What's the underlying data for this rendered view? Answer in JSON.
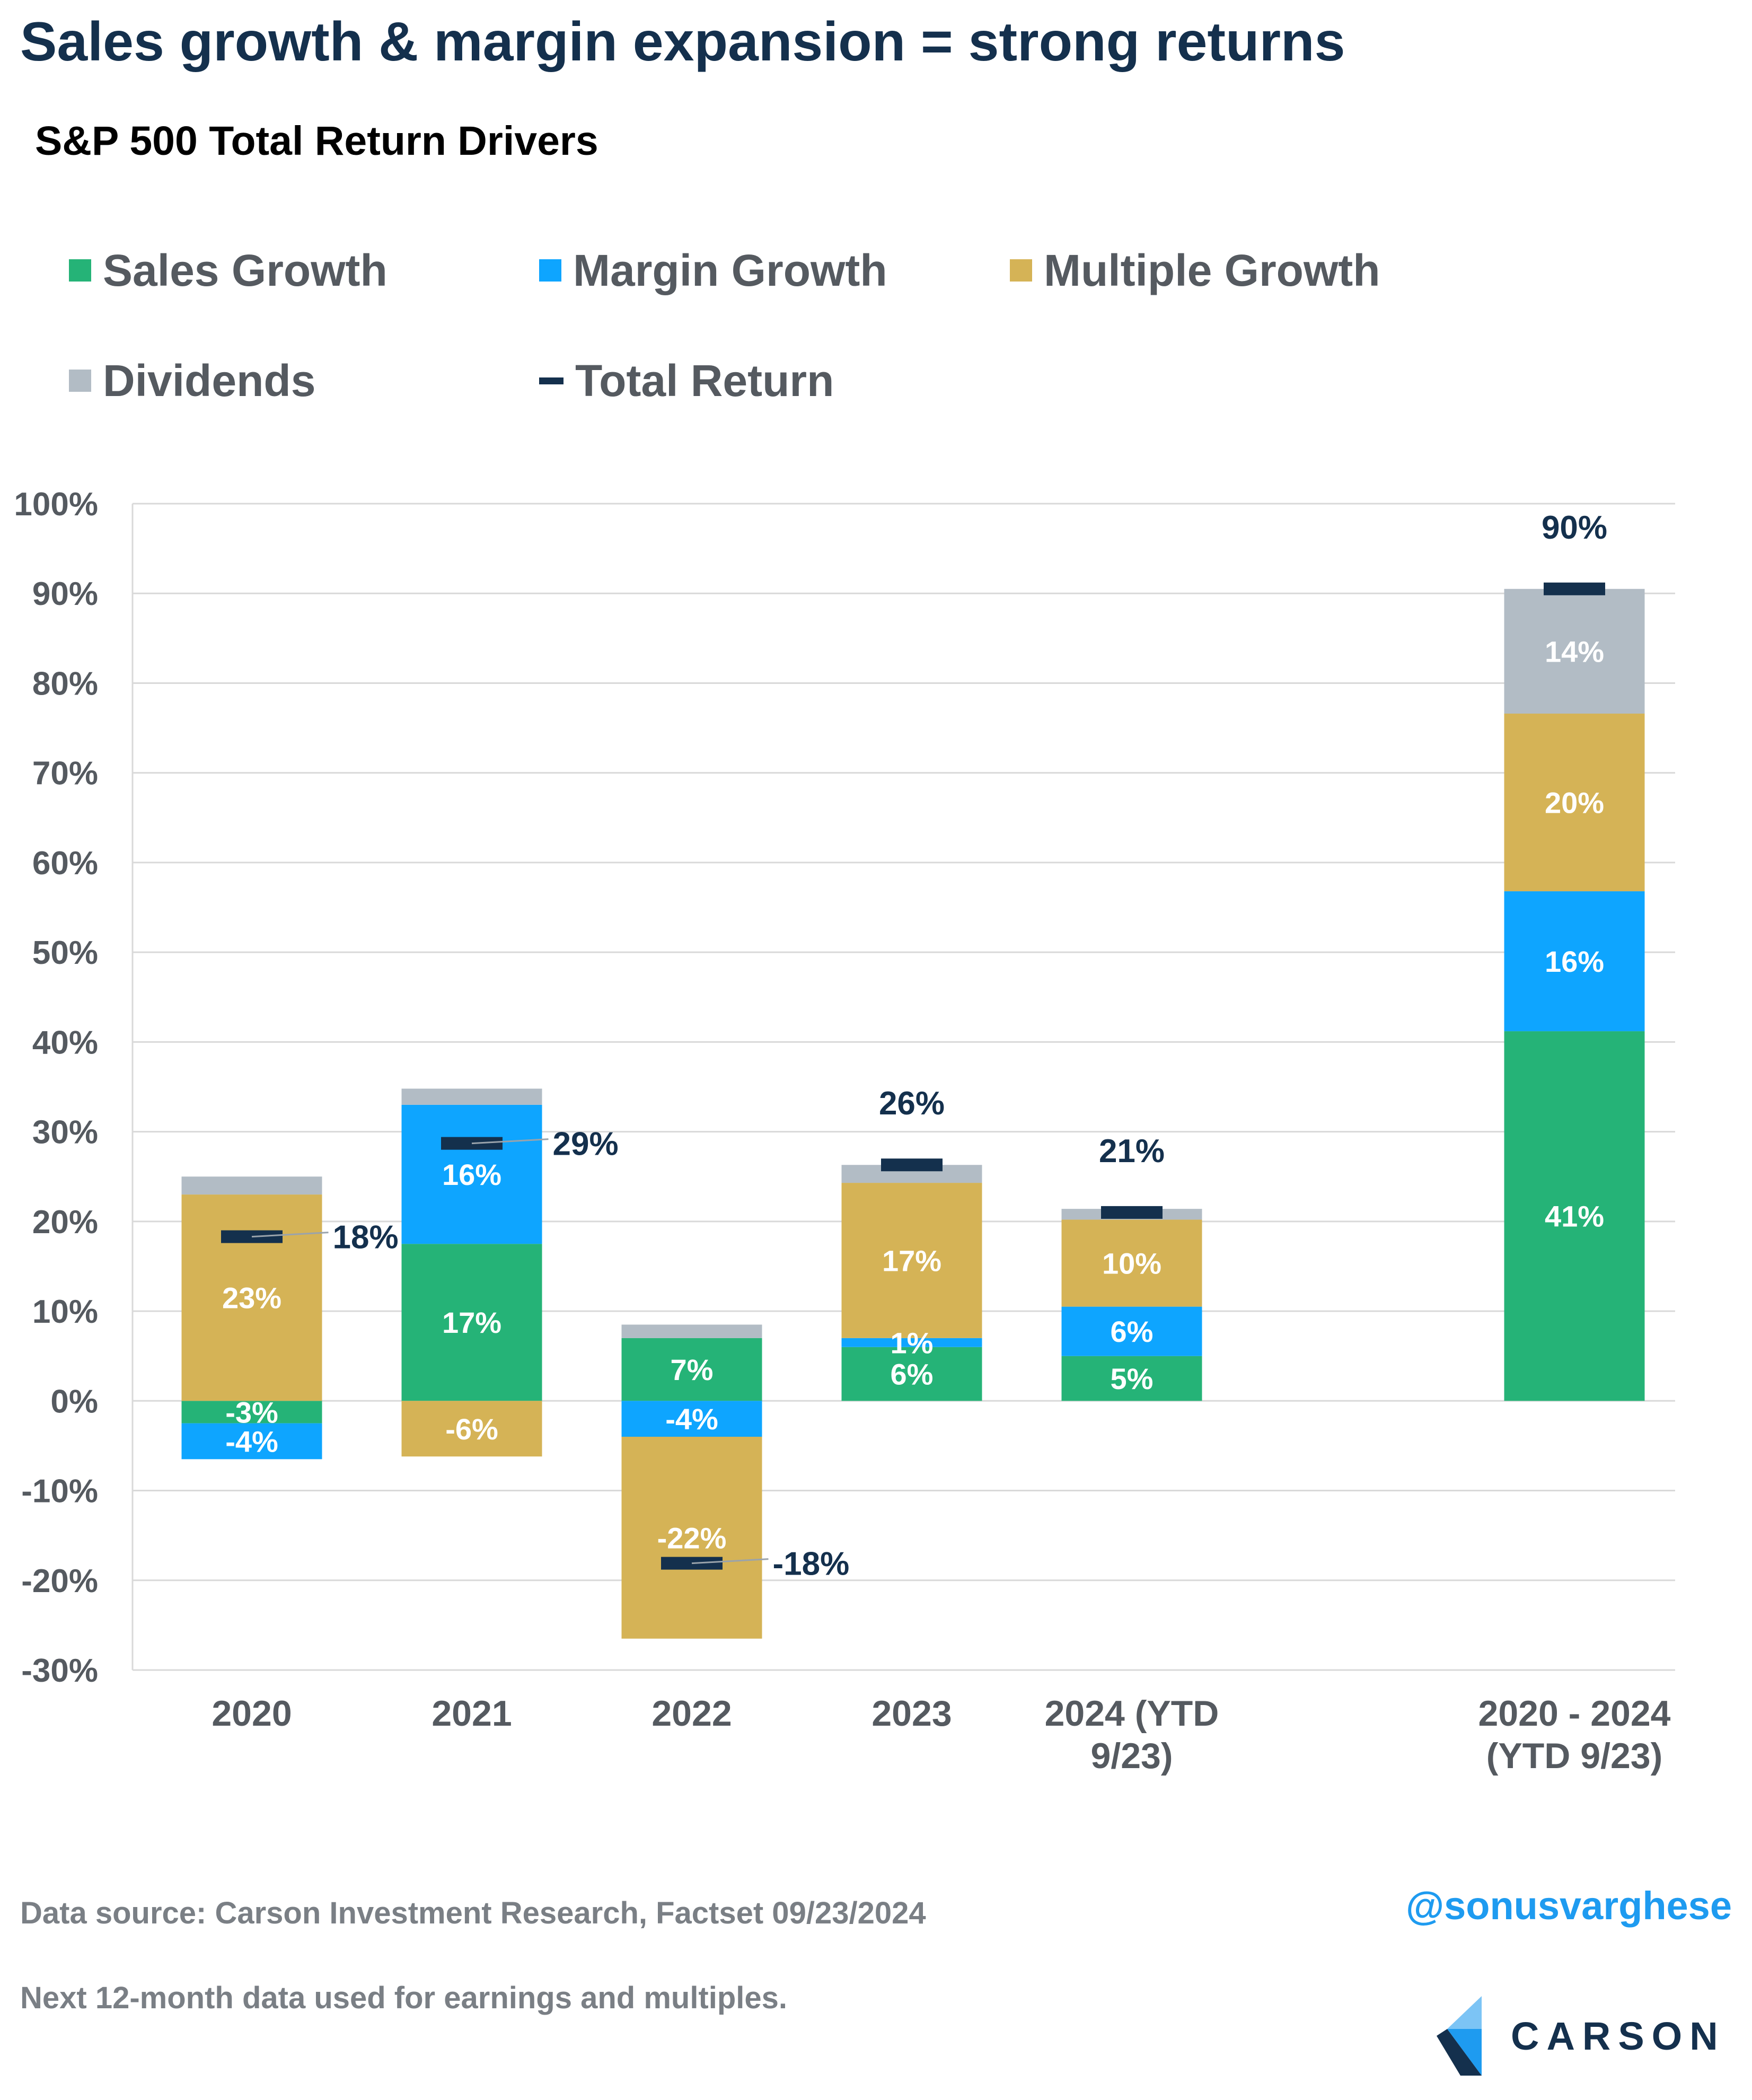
{
  "title": "Sales growth & margin expansion = strong returns",
  "subtitle": "S&P 500 Total Return Drivers",
  "colors": {
    "sales": "#25b377",
    "margin": "#0ea5ff",
    "multiple": "#d5b356",
    "dividends": "#b2bcc5",
    "total": "#14304d",
    "grid": "#d9d9d9",
    "axis_text": "#555a60"
  },
  "legend": [
    {
      "key": "sales",
      "label": "Sales Growth"
    },
    {
      "key": "margin",
      "label": "Margin Growth"
    },
    {
      "key": "multiple",
      "label": "Multiple Growth"
    },
    {
      "key": "dividends",
      "label": "Dividends"
    },
    {
      "key": "total",
      "label": "Total Return"
    }
  ],
  "chart_data": {
    "type": "bar",
    "stacked": true,
    "categories": [
      "2020",
      "2021",
      "2022",
      "2023",
      "2024 (YTD 9/23)",
      "2020 - 2024 (YTD 9/23)"
    ],
    "category_lines": [
      [
        "2020"
      ],
      [
        "2021"
      ],
      [
        "2022"
      ],
      [
        "2023"
      ],
      [
        "2024 (YTD",
        "9/23)"
      ],
      [
        "2020 - 2024",
        "(YTD 9/23)"
      ]
    ],
    "series": [
      {
        "name": "Sales Growth",
        "key": "sales",
        "values": [
          -2.5,
          17.5,
          7,
          6,
          5,
          41.2
        ],
        "labels": [
          "-3%",
          "17%",
          "7%",
          "6%",
          "5%",
          "41%"
        ]
      },
      {
        "name": "Margin Growth",
        "key": "margin",
        "values": [
          -4,
          15.5,
          -4,
          1,
          5.5,
          15.6
        ],
        "labels": [
          "-4%",
          "16%",
          "-4%",
          "1%",
          "6%",
          "16%"
        ]
      },
      {
        "name": "Multiple Growth",
        "key": "multiple",
        "values": [
          23,
          -6.2,
          -22.5,
          17.3,
          9.7,
          19.8
        ],
        "labels": [
          "23%",
          "-6%",
          "-22%",
          "17%",
          "10%",
          "20%"
        ]
      },
      {
        "name": "Dividends",
        "key": "dividends",
        "values": [
          2,
          1.8,
          1.5,
          2,
          1.2,
          13.9
        ],
        "labels": [
          "",
          "",
          "",
          "",
          "",
          "14%"
        ]
      }
    ],
    "total_return": {
      "name": "Total Return",
      "values": [
        18.3,
        28.7,
        -18.1,
        26.3,
        21,
        90.5
      ],
      "labels": [
        "18%",
        "29%",
        "-18%",
        "26%",
        "21%",
        "90%"
      ]
    },
    "ylim": [
      -30,
      100
    ],
    "yticks": [
      -30,
      -20,
      -10,
      0,
      10,
      20,
      30,
      40,
      50,
      60,
      70,
      80,
      90,
      100
    ],
    "ytick_labels": [
      "-30%",
      "-20%",
      "-10%",
      "0%",
      "10%",
      "20%",
      "30%",
      "40%",
      "50%",
      "60%",
      "70%",
      "80%",
      "90%",
      "100%"
    ],
    "grid": true,
    "legend_position": "top"
  },
  "footer": {
    "source": "Data source: Carson Investment Research, Factset   09/23/2024",
    "note": "Next 12-month data used for earnings and multiples.",
    "handle": "@sonusvarghese",
    "logo_text": "CARSON"
  }
}
